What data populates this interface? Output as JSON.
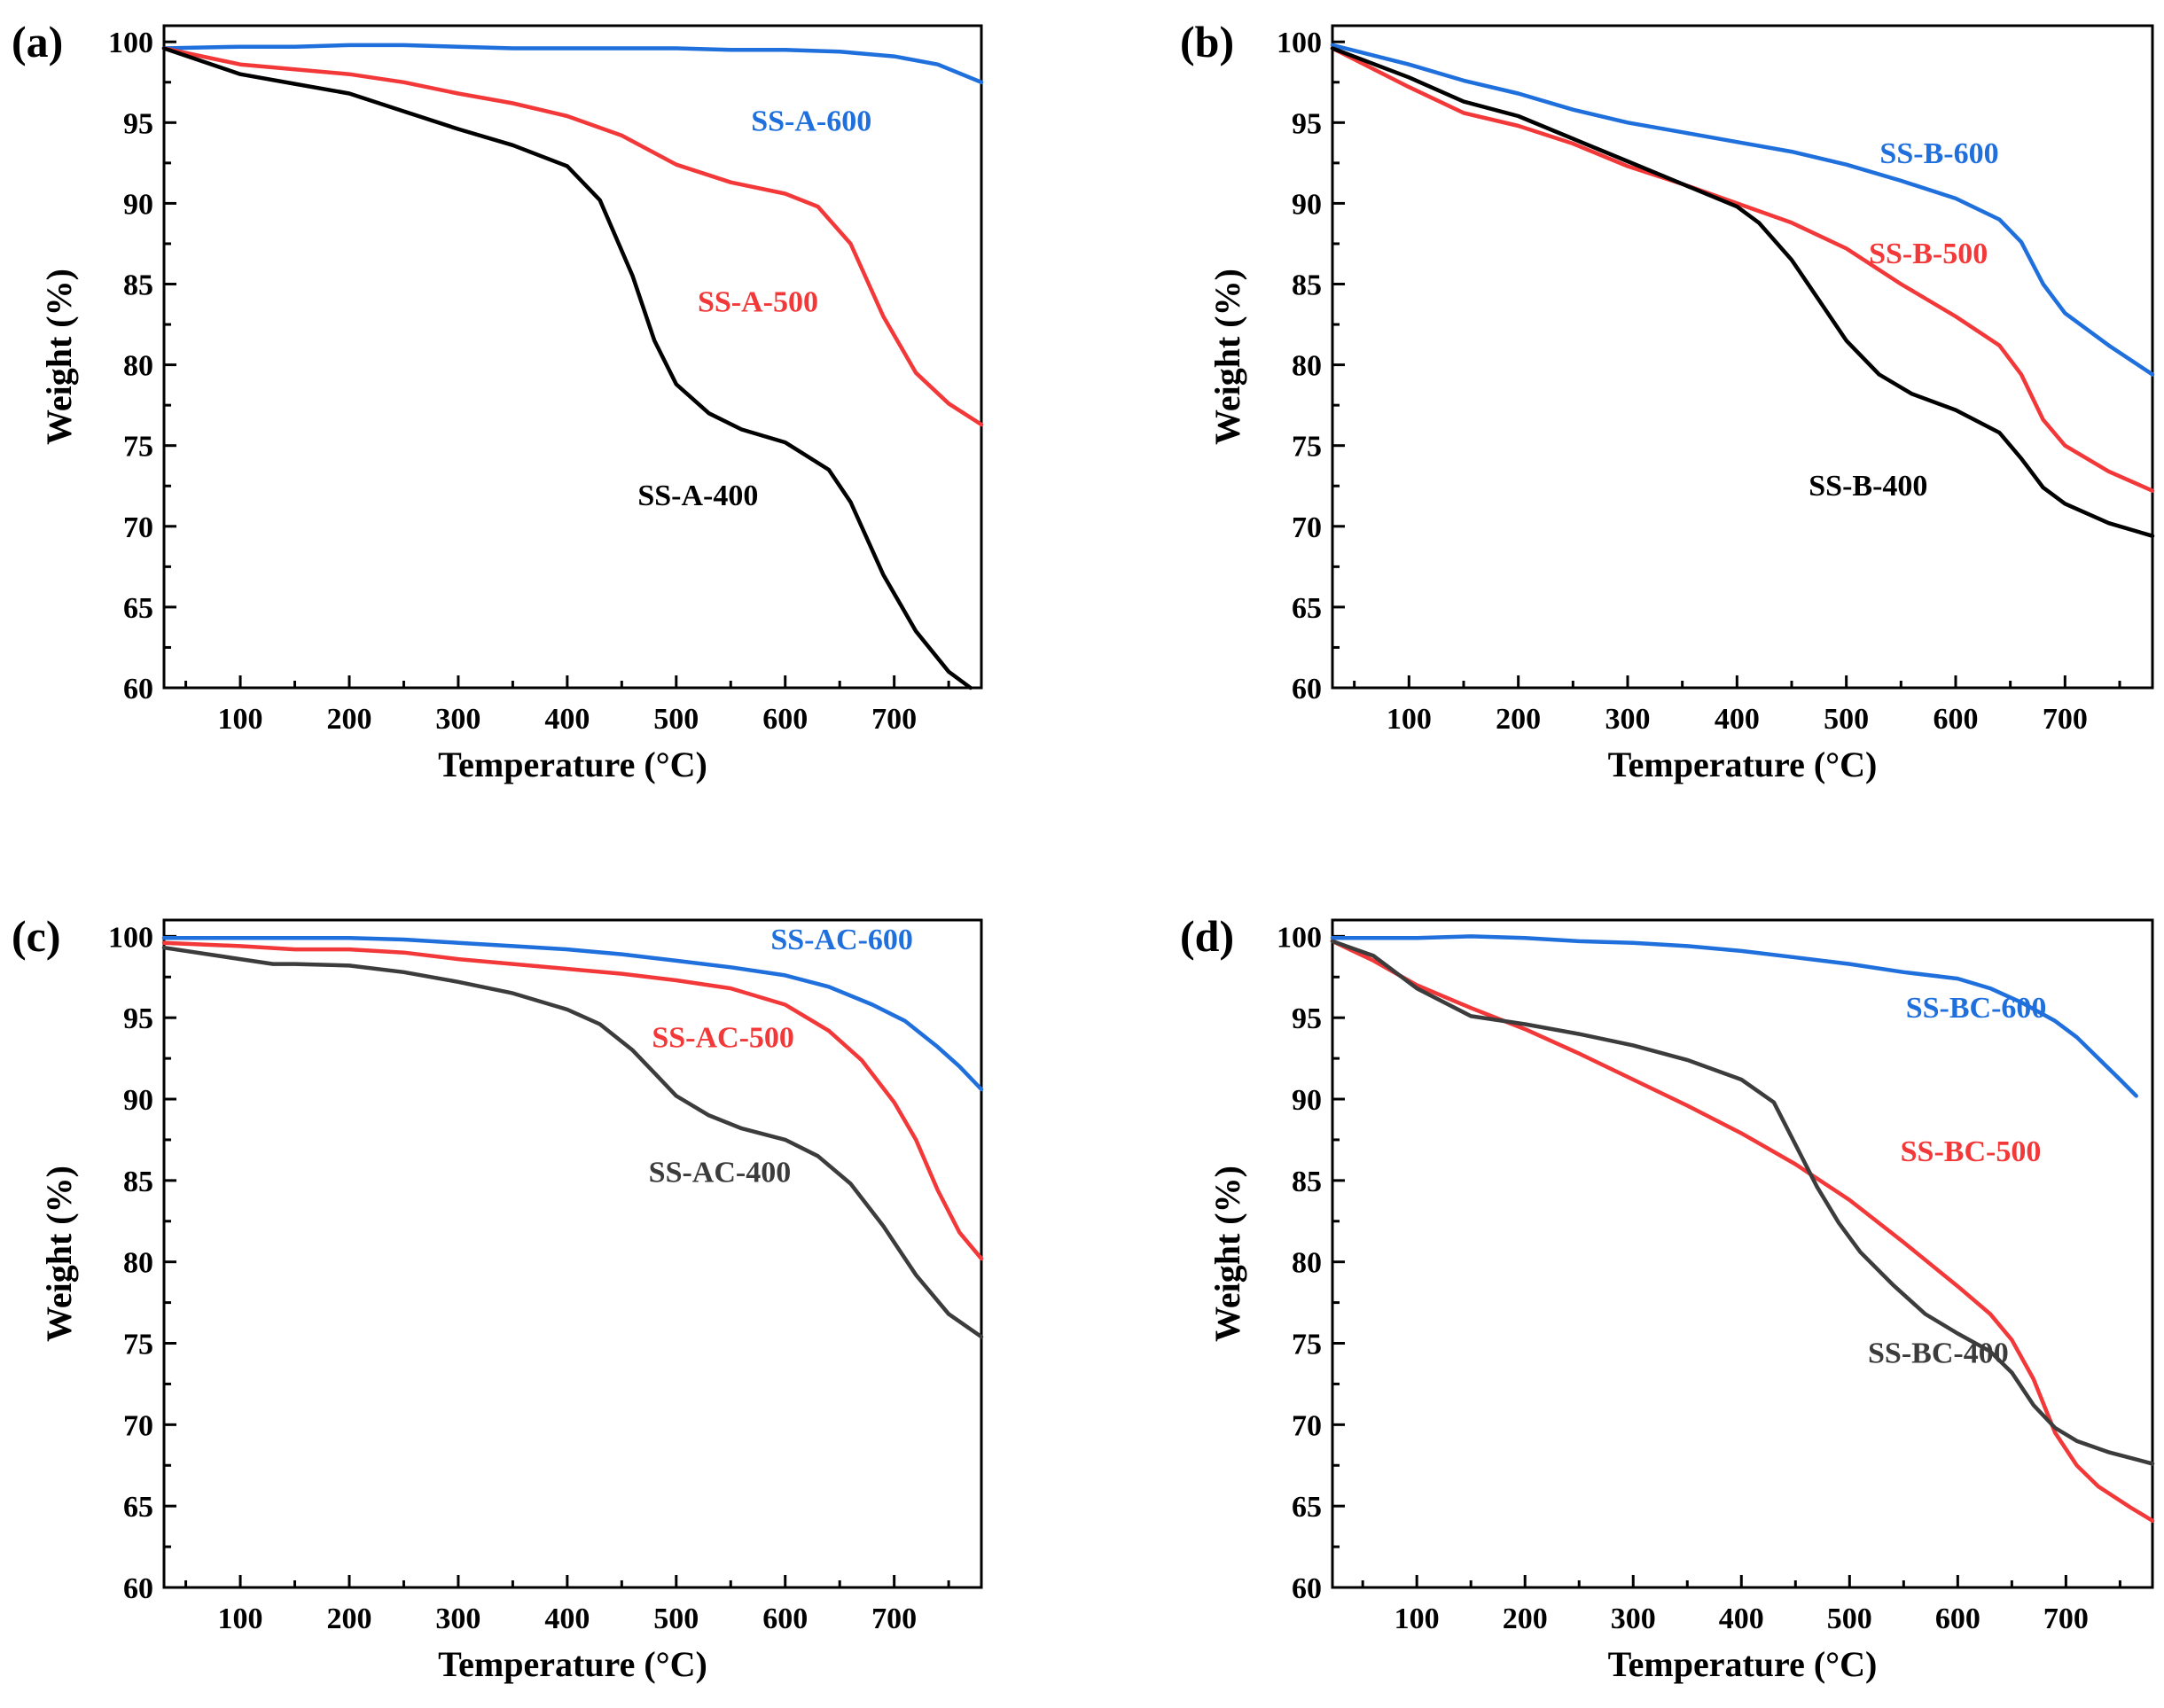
{
  "chart_data": [
    {
      "panel": "(a)",
      "type": "line",
      "xlabel": "Temperature (°C)",
      "ylabel": "Weight (%)",
      "xlim": [
        30,
        780
      ],
      "ylim": [
        60,
        101
      ],
      "xticks": [
        100,
        200,
        300,
        400,
        500,
        600,
        700
      ],
      "yticks": [
        60,
        65,
        70,
        75,
        80,
        85,
        90,
        95,
        100
      ],
      "series": [
        {
          "name": "SS-A-600",
          "color": "#1f6fdc",
          "label_at": [
            624,
            94.5
          ],
          "x": [
            30,
            100,
            150,
            200,
            250,
            300,
            350,
            400,
            450,
            500,
            550,
            600,
            650,
            700,
            740,
            780
          ],
          "y": [
            99.6,
            99.7,
            99.7,
            99.8,
            99.8,
            99.7,
            99.6,
            99.6,
            99.6,
            99.6,
            99.5,
            99.5,
            99.4,
            99.1,
            98.6,
            97.5
          ]
        },
        {
          "name": "SS-A-500",
          "color": "#f23838",
          "label_at": [
            575,
            83.3
          ],
          "x": [
            30,
            100,
            150,
            200,
            250,
            300,
            350,
            400,
            450,
            500,
            550,
            600,
            630,
            660,
            690,
            720,
            750,
            780
          ],
          "y": [
            99.6,
            98.6,
            98.3,
            98.0,
            97.5,
            96.8,
            96.2,
            95.4,
            94.2,
            92.4,
            91.3,
            90.6,
            89.8,
            87.5,
            83.0,
            79.5,
            77.6,
            76.3
          ]
        },
        {
          "name": "SS-A-400",
          "color": "#000000",
          "label_at": [
            520,
            71.3
          ],
          "x": [
            30,
            100,
            150,
            200,
            250,
            300,
            350,
            400,
            430,
            460,
            480,
            500,
            530,
            560,
            600,
            640,
            660,
            690,
            720,
            750,
            770
          ],
          "y": [
            99.6,
            98.0,
            97.4,
            96.8,
            95.7,
            94.6,
            93.6,
            92.3,
            90.2,
            85.5,
            81.5,
            78.8,
            77.0,
            76.0,
            75.2,
            73.5,
            71.5,
            67.0,
            63.5,
            61.0,
            60.0
          ]
        }
      ]
    },
    {
      "panel": "(b)",
      "type": "line",
      "xlabel": "Temperature (°C)",
      "ylabel": "Weight (%)",
      "xlim": [
        30,
        780
      ],
      "ylim": [
        60,
        101
      ],
      "xticks": [
        100,
        200,
        300,
        400,
        500,
        600,
        700
      ],
      "yticks": [
        60,
        65,
        70,
        75,
        80,
        85,
        90,
        95,
        100
      ],
      "series": [
        {
          "name": "SS-B-600",
          "color": "#1f6fdc",
          "label_at": [
            585,
            92.5
          ],
          "x": [
            30,
            100,
            150,
            200,
            250,
            300,
            350,
            400,
            450,
            500,
            550,
            600,
            640,
            660,
            680,
            700,
            740,
            780
          ],
          "y": [
            99.8,
            98.6,
            97.6,
            96.8,
            95.8,
            95.0,
            94.4,
            93.8,
            93.2,
            92.4,
            91.4,
            90.3,
            89.0,
            87.6,
            85.0,
            83.2,
            81.2,
            79.4
          ]
        },
        {
          "name": "SS-B-500",
          "color": "#f23838",
          "label_at": [
            575,
            86.3
          ],
          "x": [
            30,
            100,
            150,
            200,
            250,
            300,
            350,
            400,
            450,
            500,
            550,
            600,
            640,
            660,
            680,
            700,
            740,
            780
          ],
          "y": [
            99.6,
            97.2,
            95.6,
            94.8,
            93.7,
            92.3,
            91.2,
            90.0,
            88.8,
            87.2,
            85.0,
            83.0,
            81.2,
            79.4,
            76.6,
            75.0,
            73.4,
            72.2
          ]
        },
        {
          "name": "SS-B-400",
          "color": "#000000",
          "label_at": [
            520,
            71.9
          ],
          "x": [
            30,
            100,
            150,
            200,
            250,
            300,
            350,
            400,
            420,
            450,
            480,
            500,
            530,
            560,
            600,
            640,
            660,
            680,
            700,
            740,
            780
          ],
          "y": [
            99.6,
            97.8,
            96.3,
            95.4,
            94.0,
            92.6,
            91.2,
            89.8,
            88.8,
            86.5,
            83.5,
            81.5,
            79.4,
            78.2,
            77.2,
            75.8,
            74.2,
            72.4,
            71.4,
            70.2,
            69.4
          ]
        }
      ]
    },
    {
      "panel": "(c)",
      "type": "line",
      "xlabel": "Temperature (°C)",
      "ylabel": "Weight (%)",
      "xlim": [
        30,
        780
      ],
      "ylim": [
        60,
        101
      ],
      "xticks": [
        100,
        200,
        300,
        400,
        500,
        600,
        700
      ],
      "yticks": [
        60,
        65,
        70,
        75,
        80,
        85,
        90,
        95,
        100
      ],
      "series": [
        {
          "name": "SS-AC-600",
          "color": "#1f6fdc",
          "label_at": [
            652,
            99.2
          ],
          "x": [
            30,
            100,
            150,
            200,
            250,
            300,
            350,
            400,
            450,
            500,
            550,
            600,
            640,
            680,
            710,
            740,
            760,
            780
          ],
          "y": [
            99.9,
            99.9,
            99.9,
            99.9,
            99.8,
            99.6,
            99.4,
            99.2,
            98.9,
            98.5,
            98.1,
            97.6,
            96.9,
            95.8,
            94.8,
            93.2,
            92.0,
            90.6
          ]
        },
        {
          "name": "SS-AC-500",
          "color": "#f23838",
          "label_at": [
            543,
            93.2
          ],
          "x": [
            30,
            100,
            150,
            200,
            250,
            300,
            350,
            400,
            450,
            500,
            550,
            600,
            640,
            670,
            700,
            720,
            740,
            760,
            780
          ],
          "y": [
            99.6,
            99.4,
            99.2,
            99.2,
            99.0,
            98.6,
            98.3,
            98.0,
            97.7,
            97.3,
            96.8,
            95.8,
            94.2,
            92.4,
            89.8,
            87.5,
            84.4,
            81.8,
            80.2
          ]
        },
        {
          "name": "SS-AC-400",
          "color": "#3c3c3c",
          "label_at": [
            540,
            84.9
          ],
          "x": [
            30,
            100,
            130,
            150,
            200,
            250,
            300,
            350,
            400,
            430,
            460,
            480,
            500,
            530,
            560,
            600,
            630,
            660,
            690,
            720,
            750,
            780
          ],
          "y": [
            99.3,
            98.6,
            98.3,
            98.3,
            98.2,
            97.8,
            97.2,
            96.5,
            95.5,
            94.6,
            93.0,
            91.6,
            90.2,
            89.0,
            88.2,
            87.5,
            86.5,
            84.8,
            82.2,
            79.2,
            76.8,
            75.4
          ]
        }
      ]
    },
    {
      "panel": "(d)",
      "type": "line",
      "xlabel": "Temperature (°C)",
      "ylabel": "Weight (%)",
      "xlim": [
        22,
        780
      ],
      "ylim": [
        60,
        101
      ],
      "xticks": [
        100,
        200,
        300,
        400,
        500,
        600,
        700
      ],
      "yticks": [
        60,
        65,
        70,
        75,
        80,
        85,
        90,
        95,
        100
      ],
      "series": [
        {
          "name": "SS-BC-600",
          "color": "#1f6fdc",
          "label_at": [
            617,
            95.0
          ],
          "x": [
            22,
            100,
            150,
            200,
            250,
            300,
            350,
            400,
            450,
            500,
            550,
            600,
            630,
            660,
            690,
            710,
            730,
            750,
            765
          ],
          "y": [
            99.9,
            99.9,
            100.0,
            99.9,
            99.7,
            99.6,
            99.4,
            99.1,
            98.7,
            98.3,
            97.8,
            97.4,
            96.8,
            95.9,
            94.8,
            93.8,
            92.5,
            91.2,
            90.2
          ]
        },
        {
          "name": "SS-BC-500",
          "color": "#f23838",
          "label_at": [
            612,
            86.2
          ],
          "x": [
            22,
            60,
            100,
            150,
            200,
            250,
            300,
            350,
            400,
            450,
            500,
            550,
            600,
            630,
            650,
            670,
            690,
            710,
            730,
            760,
            780
          ],
          "y": [
            99.7,
            98.5,
            97.0,
            95.6,
            94.3,
            92.8,
            91.2,
            89.6,
            87.9,
            86.0,
            83.8,
            81.2,
            78.5,
            76.8,
            75.2,
            72.8,
            69.5,
            67.5,
            66.2,
            64.9,
            64.1
          ]
        },
        {
          "name": "SS-BC-400",
          "color": "#3c3c3c",
          "label_at": [
            582,
            73.8
          ],
          "x": [
            22,
            60,
            100,
            150,
            200,
            250,
            300,
            350,
            400,
            430,
            450,
            470,
            490,
            510,
            540,
            570,
            600,
            630,
            650,
            670,
            690,
            710,
            740,
            780
          ],
          "y": [
            99.7,
            98.8,
            96.8,
            95.1,
            94.6,
            94.0,
            93.3,
            92.4,
            91.2,
            89.8,
            87.2,
            84.6,
            82.4,
            80.6,
            78.6,
            76.8,
            75.6,
            74.5,
            73.2,
            71.2,
            69.8,
            69.0,
            68.3,
            67.6
          ]
        }
      ]
    }
  ]
}
